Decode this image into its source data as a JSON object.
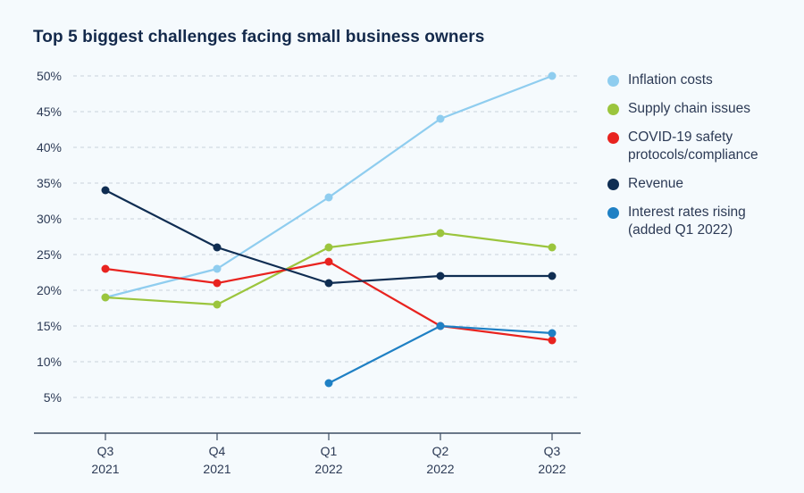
{
  "chart_data": {
    "type": "line",
    "title": "Top 5 biggest challenges facing small business owners",
    "xlabel": "",
    "ylabel": "",
    "categories": [
      [
        "Q3",
        "2021"
      ],
      [
        "Q4",
        "2021"
      ],
      [
        "Q1",
        "2022"
      ],
      [
        "Q2",
        "2022"
      ],
      [
        "Q3",
        "2022"
      ]
    ],
    "ylim": [
      0,
      50
    ],
    "yticks": [
      5,
      10,
      15,
      20,
      25,
      30,
      35,
      40,
      45,
      50
    ],
    "ytick_labels": [
      "5%",
      "10%",
      "15%",
      "20%",
      "25%",
      "30%",
      "35%",
      "40%",
      "45%",
      "50%"
    ],
    "grid": "horizontal-dashed",
    "legend_position": "right",
    "series": [
      {
        "name": "Inflation costs",
        "color": "#8fcdef",
        "values": [
          19,
          23,
          33,
          44,
          50
        ]
      },
      {
        "name": "Supply chain issues",
        "color": "#9bc53d",
        "values": [
          19,
          18,
          26,
          28,
          26
        ]
      },
      {
        "name": "COVID-19 safety protocols/compliance",
        "legend_lines": [
          "COVID-19 safety",
          "protocols/compliance"
        ],
        "color": "#e8231f",
        "values": [
          23,
          21,
          24,
          15,
          13
        ]
      },
      {
        "name": "Revenue",
        "color": "#0f2d52",
        "values": [
          34,
          26,
          21,
          22,
          22
        ]
      },
      {
        "name": "Interest rates rising (added Q1 2022)",
        "legend_lines": [
          "Interest rates rising",
          "(added Q1 2022)"
        ],
        "color": "#1f80c4",
        "values": [
          null,
          null,
          7,
          15,
          14
        ]
      }
    ]
  }
}
